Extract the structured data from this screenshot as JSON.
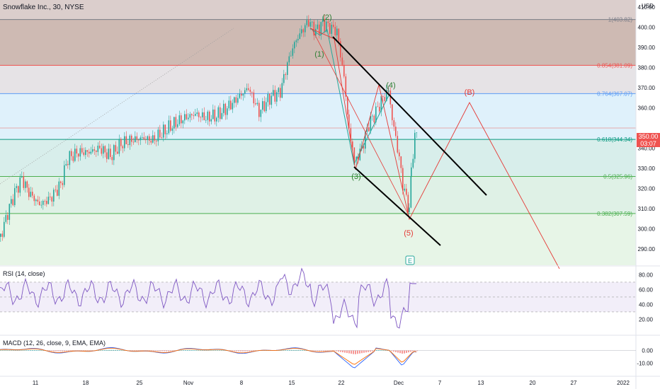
{
  "header": {
    "title": "Snowflake Inc., 30, NYSE",
    "currency": "USD"
  },
  "colors": {
    "bg": "#ffffff",
    "grid": "#f0f3fa",
    "up": "#26a69a",
    "down": "#ef5350",
    "fib_top": "#d7c9c6",
    "fib_0786": "#e3e0e3",
    "fib_0764": "#dbeffb",
    "fib_0618": "#d4ece9",
    "fib_05": "#dcf0e3",
    "fib_0382": "#e4f4e4",
    "wave_green": "#2e7d32",
    "wave_red": "#e53935",
    "channel": "#000000",
    "rsi_line": "#7e57c2",
    "macd_line": "#2962ff",
    "signal_line": "#ff6d00"
  },
  "price_axis": {
    "labels": [
      "410.00",
      "400.00",
      "390.00",
      "380.00",
      "370.00",
      "360.00",
      "350.00",
      "340.00",
      "330.00",
      "320.00",
      "310.00",
      "300.00",
      "290.00"
    ],
    "last_price": "350.00",
    "countdown": "03:07"
  },
  "fib_levels": [
    {
      "label": "1(403.82)",
      "price": 403.82,
      "color": "#787b86"
    },
    {
      "label": "0.854(381.09)",
      "price": 381.09,
      "color": "#ef5350"
    },
    {
      "label": "0.764(367.07)",
      "price": 367.07,
      "color": "#5b9cf6"
    },
    {
      "label": "0.618(344.34)",
      "price": 344.34,
      "color": "#089981"
    },
    {
      "label": "0.5(325.96)",
      "price": 325.96,
      "color": "#4caf50"
    },
    {
      "label": "0.382(307.59)",
      "price": 307.59,
      "color": "#4caf50"
    }
  ],
  "wave_labels": [
    {
      "text": "(2)",
      "color": "green"
    },
    {
      "text": "(1)",
      "color": "green"
    },
    {
      "text": "(4)",
      "color": "green"
    },
    {
      "text": "(3)",
      "color": "green"
    },
    {
      "text": "(5)",
      "color": "red"
    },
    {
      "text": "(B)",
      "color": "red"
    },
    {
      "text": "E",
      "color": "teal"
    }
  ],
  "rsi": {
    "label": "RSI (14, close)",
    "axis_labels": [
      "80.00",
      "60.00",
      "40.00",
      "20.00"
    ]
  },
  "macd": {
    "label": "MACD (12, 26, close, 9, EMA, EMA)",
    "axis_labels": [
      "0.00",
      "-10.00"
    ]
  },
  "time_axis": {
    "labels": [
      "11",
      "18",
      "25",
      "Nov",
      "8",
      "15",
      "22",
      "Dec",
      "7",
      "13",
      "20",
      "27",
      "2022"
    ]
  }
}
